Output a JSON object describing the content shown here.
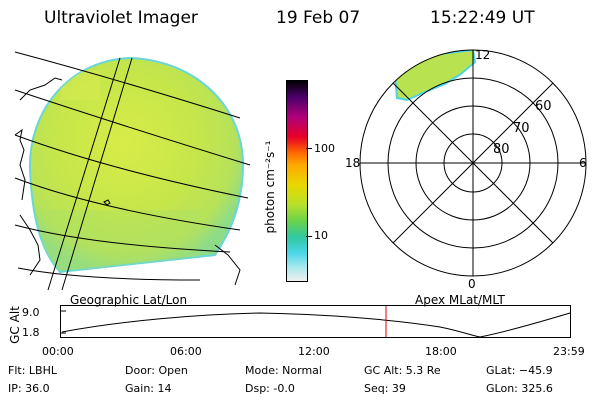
{
  "header": {
    "instrument": "Ultraviolet Imager",
    "date": "19 Feb 07",
    "time": "15:22:49 UT"
  },
  "colorbar": {
    "unit_label": "photon cm⁻²s⁻¹",
    "tick_100": "100",
    "tick_10": "10"
  },
  "panels": {
    "geo_label": "Geographic Lat/Lon",
    "apex_label": "Apex MLat/MLT"
  },
  "polar": {
    "mlt_top": "12",
    "mlt_bottom": "0",
    "mlt_left": "18",
    "mlt_right": "6",
    "lat_60": "60",
    "lat_70": "70",
    "lat_80": "80"
  },
  "altitude_plot": {
    "ylabel": "GC Alt",
    "y_max": "9.0",
    "y_min": "1.8",
    "x_ticks": [
      "00:00",
      "06:00",
      "12:00",
      "18:00",
      "23:59"
    ],
    "current_time_color": "#e00000"
  },
  "status": {
    "flt": "Flt: LBHL",
    "ip": "IP: 36.0",
    "door": "Door: Open",
    "gain": "Gain: 14",
    "mode": "Mode: Normal",
    "dsp": "Dsp:    -0.0",
    "gc_alt": "GC Alt: 5.3 Re",
    "seq": "Seq: 39",
    "glat": "GLat: −45.9",
    "glon": "GLon: 325.6"
  },
  "colors": {
    "image_fill": "#c8e84a",
    "image_edge": "#6ad6d6",
    "grid_lines": "#000000"
  }
}
